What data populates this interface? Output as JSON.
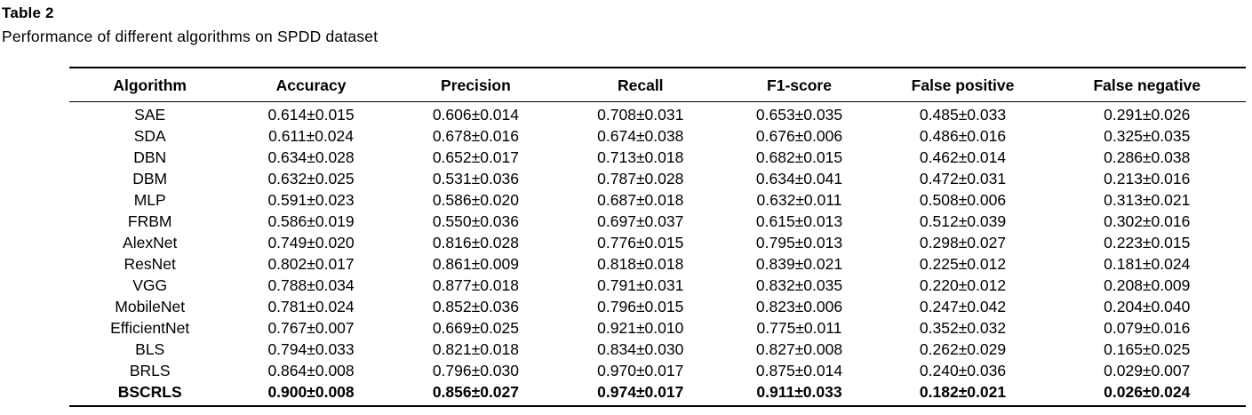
{
  "title": "Table 2",
  "caption": "Performance of different algorithms on SPDD dataset",
  "chart_data": {
    "type": "table",
    "columns": [
      "Algorithm",
      "Accuracy",
      "Precision",
      "Recall",
      "F1-score",
      "False positive",
      "False negative"
    ],
    "rows": [
      [
        "SAE",
        "0.614±0.015",
        "0.606±0.014",
        "0.708±0.031",
        "0.653±0.035",
        "0.485±0.033",
        "0.291±0.026"
      ],
      [
        "SDA",
        "0.611±0.024",
        "0.678±0.016",
        "0.674±0.038",
        "0.676±0.006",
        "0.486±0.016",
        "0.325±0.035"
      ],
      [
        "DBN",
        "0.634±0.028",
        "0.652±0.017",
        "0.713±0.018",
        "0.682±0.015",
        "0.462±0.014",
        "0.286±0.038"
      ],
      [
        "DBM",
        "0.632±0.025",
        "0.531±0.036",
        "0.787±0.028",
        "0.634±0.041",
        "0.472±0.031",
        "0.213±0.016"
      ],
      [
        "MLP",
        "0.591±0.023",
        "0.586±0.020",
        "0.687±0.018",
        "0.632±0.011",
        "0.508±0.006",
        "0.313±0.021"
      ],
      [
        "FRBM",
        "0.586±0.019",
        "0.550±0.036",
        "0.697±0.037",
        "0.615±0.013",
        "0.512±0.039",
        "0.302±0.016"
      ],
      [
        "AlexNet",
        "0.749±0.020",
        "0.816±0.028",
        "0.776±0.015",
        "0.795±0.013",
        "0.298±0.027",
        "0.223±0.015"
      ],
      [
        "ResNet",
        "0.802±0.017",
        "0.861±0.009",
        "0.818±0.018",
        "0.839±0.021",
        "0.225±0.012",
        "0.181±0.024"
      ],
      [
        "VGG",
        "0.788±0.034",
        "0.877±0.018",
        "0.791±0.031",
        "0.832±0.035",
        "0.220±0.012",
        "0.208±0.009"
      ],
      [
        "MobileNet",
        "0.781±0.024",
        "0.852±0.036",
        "0.796±0.015",
        "0.823±0.006",
        "0.247±0.042",
        "0.204±0.040"
      ],
      [
        "EfficientNet",
        "0.767±0.007",
        "0.669±0.025",
        "0.921±0.010",
        "0.775±0.011",
        "0.352±0.032",
        "0.079±0.016"
      ],
      [
        "BLS",
        "0.794±0.033",
        "0.821±0.018",
        "0.834±0.030",
        "0.827±0.008",
        "0.262±0.029",
        "0.165±0.025"
      ],
      [
        "BRLS",
        "0.864±0.008",
        "0.796±0.030",
        "0.970±0.017",
        "0.875±0.014",
        "0.240±0.036",
        "0.029±0.007"
      ],
      [
        "BSCRLS",
        "0.900±0.008",
        "0.856±0.027",
        "0.974±0.017",
        "0.911±0.033",
        "0.182±0.021",
        "0.026±0.024"
      ]
    ],
    "bold_row_index": 13,
    "column_width_percents": [
      13.7,
      13.7,
      14.3,
      13.7,
      13.3,
      14.5,
      16.8
    ],
    "text_color": "#000000",
    "background_color": "#ffffff",
    "rule_color": "#000000"
  }
}
